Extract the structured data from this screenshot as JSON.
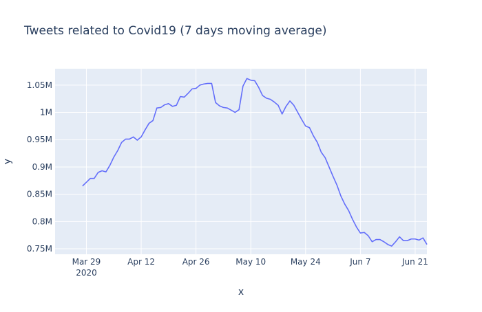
{
  "chart_data": {
    "type": "line",
    "title": "Tweets related to Covid19 (7 days moving average)",
    "xlabel": "x",
    "ylabel": "y",
    "x_start": "2020-03-28",
    "x_step_days": 1,
    "xlim": [
      "2020-03-21",
      "2020-06-24"
    ],
    "ylim": [
      740000,
      1080000
    ],
    "x_ticks": [
      {
        "date": "2020-03-29",
        "label": "Mar 29",
        "sublabel": "2020"
      },
      {
        "date": "2020-04-12",
        "label": "Apr 12"
      },
      {
        "date": "2020-04-26",
        "label": "Apr 26"
      },
      {
        "date": "2020-05-10",
        "label": "May 10"
      },
      {
        "date": "2020-05-24",
        "label": "May 24"
      },
      {
        "date": "2020-06-07",
        "label": "Jun 7"
      },
      {
        "date": "2020-06-21",
        "label": "Jun 21"
      }
    ],
    "y_ticks": [
      {
        "value": 750000,
        "label": "0.75M"
      },
      {
        "value": 800000,
        "label": "0.8M"
      },
      {
        "value": 850000,
        "label": "0.85M"
      },
      {
        "value": 900000,
        "label": "0.9M"
      },
      {
        "value": 950000,
        "label": "0.95M"
      },
      {
        "value": 1000000,
        "label": "1M"
      },
      {
        "value": 1050000,
        "label": "1.05M"
      }
    ],
    "grid": true,
    "series": [
      {
        "color": "#636efa",
        "values": [
          865000,
          872000,
          879000,
          879000,
          890000,
          893000,
          891000,
          903000,
          918000,
          930000,
          945000,
          951000,
          951000,
          955000,
          949000,
          955000,
          968000,
          980000,
          985000,
          1008000,
          1009000,
          1014000,
          1016000,
          1011000,
          1013000,
          1029000,
          1028000,
          1035000,
          1043000,
          1044000,
          1050000,
          1052000,
          1053000,
          1053000,
          1018000,
          1012000,
          1009000,
          1008000,
          1004000,
          1000000,
          1005000,
          1048000,
          1062000,
          1059000,
          1058000,
          1046000,
          1031000,
          1026000,
          1024000,
          1019000,
          1013000,
          997000,
          1011000,
          1021000,
          1013000,
          1000000,
          987000,
          975000,
          972000,
          957000,
          945000,
          927000,
          917000,
          900000,
          883000,
          867000,
          847000,
          832000,
          820000,
          804000,
          790000,
          779000,
          780000,
          774000,
          763000,
          767000,
          767000,
          763000,
          758000,
          755000,
          763000,
          772000,
          765000,
          765000,
          768000,
          768000,
          766000,
          770000,
          758000
        ]
      }
    ]
  }
}
